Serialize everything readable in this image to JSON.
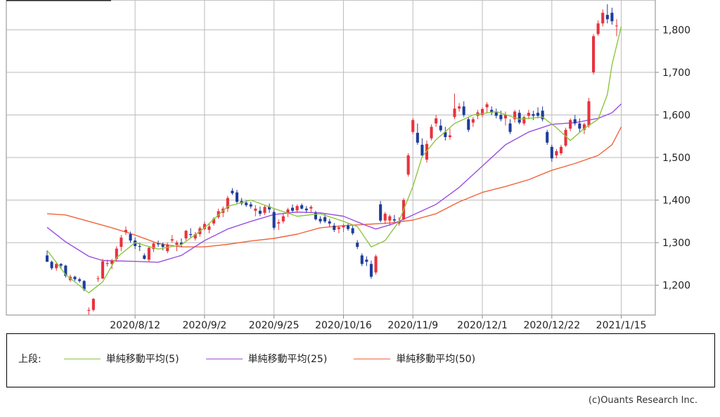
{
  "chart_data": {
    "type": "candlestick",
    "ylim": [
      1130,
      1870
    ],
    "y_ticks": [
      1200,
      1300,
      1400,
      1500,
      1600,
      1700,
      1800
    ],
    "y_tick_labels": [
      "1,200",
      "1,300",
      "1,400",
      "1,500",
      "1,600",
      "1,700",
      "1,800"
    ],
    "x_tick_labels": [
      "2020/8/12",
      "2020/9/2",
      "2020/9/25",
      "2020/10/16",
      "2020/11/9",
      "2020/12/1",
      "2020/12/22",
      "2021/1/15"
    ],
    "x_tick_index": [
      19,
      34,
      49,
      64,
      79,
      94,
      109,
      124
    ],
    "grid": true,
    "colors": {
      "up": "#e8323c",
      "down": "#1e3c9a",
      "ma5": "#8cc63f",
      "ma25": "#9b4fe0",
      "ma50": "#f0643c",
      "grid": "#bbbbbb",
      "axis": "#888888"
    },
    "candles": [
      [
        1270,
        1282,
        1258,
        1255
      ],
      [
        1255,
        1258,
        1236,
        1240
      ],
      [
        1240,
        1255,
        1234,
        1250
      ],
      [
        1250,
        1252,
        1240,
        1246
      ],
      [
        1246,
        1248,
        1218,
        1222
      ],
      [
        1212,
        1225,
        1208,
        1220
      ],
      [
        1220,
        1222,
        1210,
        1214
      ],
      [
        1214,
        1218,
        1206,
        1210
      ],
      [
        1210,
        1212,
        1186,
        1190
      ],
      [
        1140,
        1148,
        1130,
        1142
      ],
      [
        1142,
        1170,
        1138,
        1168
      ],
      [
        1215,
        1222,
        1208,
        1216
      ],
      [
        1216,
        1262,
        1214,
        1256
      ],
      [
        1250,
        1260,
        1244,
        1252
      ],
      [
        1250,
        1262,
        1238,
        1258
      ],
      [
        1262,
        1292,
        1255,
        1286
      ],
      [
        1290,
        1318,
        1280,
        1312
      ],
      [
        1325,
        1338,
        1318,
        1330
      ],
      [
        1320,
        1326,
        1300,
        1305
      ],
      [
        1305,
        1312,
        1285,
        1292
      ],
      [
        1292,
        1300,
        1280,
        1290
      ],
      [
        1270,
        1275,
        1260,
        1262
      ],
      [
        1260,
        1290,
        1255,
        1288
      ],
      [
        1285,
        1300,
        1278,
        1298
      ],
      [
        1298,
        1305,
        1290,
        1296
      ],
      [
        1296,
        1300,
        1282,
        1290
      ],
      [
        1280,
        1300,
        1275,
        1295
      ],
      [
        1305,
        1318,
        1300,
        1308
      ],
      [
        1295,
        1305,
        1280,
        1300
      ],
      [
        1300,
        1310,
        1290,
        1296
      ],
      [
        1310,
        1330,
        1305,
        1328
      ],
      [
        1320,
        1334,
        1312,
        1318
      ],
      [
        1310,
        1325,
        1305,
        1320
      ],
      [
        1320,
        1338,
        1314,
        1334
      ],
      [
        1332,
        1350,
        1328,
        1344
      ],
      [
        1330,
        1345,
        1322,
        1338
      ],
      [
        1345,
        1360,
        1340,
        1356
      ],
      [
        1360,
        1380,
        1356,
        1374
      ],
      [
        1370,
        1385,
        1360,
        1380
      ],
      [
        1380,
        1410,
        1372,
        1405
      ],
      [
        1422,
        1428,
        1412,
        1416
      ],
      [
        1418,
        1424,
        1392,
        1396
      ],
      [
        1398,
        1405,
        1388,
        1392
      ],
      [
        1394,
        1400,
        1384,
        1388
      ],
      [
        1390,
        1396,
        1380,
        1385
      ],
      [
        1375,
        1388,
        1362,
        1380
      ],
      [
        1375,
        1385,
        1362,
        1368
      ],
      [
        1370,
        1388,
        1365,
        1384
      ],
      [
        1385,
        1392,
        1370,
        1378
      ],
      [
        1372,
        1378,
        1330,
        1335
      ],
      [
        1345,
        1355,
        1330,
        1348
      ],
      [
        1350,
        1368,
        1345,
        1362
      ],
      [
        1370,
        1382,
        1360,
        1378
      ],
      [
        1382,
        1390,
        1372,
        1375
      ],
      [
        1376,
        1390,
        1370,
        1386
      ],
      [
        1388,
        1392,
        1378,
        1380
      ],
      [
        1380,
        1386,
        1370,
        1376
      ],
      [
        1380,
        1388,
        1372,
        1384
      ],
      [
        1370,
        1375,
        1352,
        1355
      ],
      [
        1356,
        1362,
        1345,
        1350
      ],
      [
        1360,
        1368,
        1346,
        1350
      ],
      [
        1350,
        1356,
        1338,
        1345
      ],
      [
        1340,
        1346,
        1325,
        1330
      ],
      [
        1332,
        1340,
        1322,
        1336
      ],
      [
        1336,
        1344,
        1325,
        1340
      ],
      [
        1340,
        1345,
        1328,
        1332
      ],
      [
        1334,
        1340,
        1318,
        1322
      ],
      [
        1300,
        1306,
        1285,
        1290
      ],
      [
        1270,
        1275,
        1245,
        1250
      ],
      [
        1260,
        1268,
        1245,
        1255
      ],
      [
        1250,
        1258,
        1215,
        1220
      ],
      [
        1230,
        1272,
        1225,
        1268
      ],
      [
        1390,
        1398,
        1348,
        1352
      ],
      [
        1352,
        1372,
        1344,
        1368
      ],
      [
        1352,
        1366,
        1340,
        1362
      ],
      [
        1355,
        1365,
        1348,
        1352
      ],
      [
        1345,
        1360,
        1340,
        1350
      ],
      [
        1355,
        1405,
        1352,
        1400
      ],
      [
        1460,
        1510,
        1455,
        1505
      ],
      [
        1560,
        1592,
        1555,
        1588
      ],
      [
        1558,
        1580,
        1530,
        1535
      ],
      [
        1530,
        1545,
        1500,
        1505
      ],
      [
        1495,
        1540,
        1488,
        1532
      ],
      [
        1545,
        1578,
        1540,
        1572
      ],
      [
        1580,
        1600,
        1572,
        1592
      ],
      [
        1575,
        1590,
        1560,
        1564
      ],
      [
        1560,
        1572,
        1540,
        1548
      ],
      [
        1548,
        1568,
        1542,
        1552
      ],
      [
        1595,
        1650,
        1590,
        1615
      ],
      [
        1615,
        1628,
        1608,
        1620
      ],
      [
        1620,
        1632,
        1595,
        1600
      ],
      [
        1590,
        1596,
        1560,
        1565
      ],
      [
        1582,
        1595,
        1572,
        1590
      ],
      [
        1598,
        1612,
        1590,
        1606
      ],
      [
        1600,
        1618,
        1594,
        1614
      ],
      [
        1618,
        1630,
        1605,
        1625
      ],
      [
        1612,
        1620,
        1600,
        1605
      ],
      [
        1606,
        1615,
        1592,
        1598
      ],
      [
        1600,
        1610,
        1585,
        1590
      ],
      [
        1592,
        1608,
        1575,
        1600
      ],
      [
        1580,
        1590,
        1555,
        1560
      ],
      [
        1590,
        1612,
        1582,
        1608
      ],
      [
        1605,
        1612,
        1578,
        1582
      ],
      [
        1580,
        1598,
        1575,
        1595
      ],
      [
        1598,
        1612,
        1590,
        1605
      ],
      [
        1602,
        1610,
        1588,
        1598
      ],
      [
        1605,
        1618,
        1592,
        1598
      ],
      [
        1610,
        1620,
        1585,
        1590
      ],
      [
        1560,
        1565,
        1530,
        1535
      ],
      [
        1525,
        1530,
        1490,
        1498
      ],
      [
        1505,
        1520,
        1498,
        1515
      ],
      [
        1510,
        1530,
        1505,
        1525
      ],
      [
        1528,
        1570,
        1525,
        1565
      ],
      [
        1568,
        1592,
        1562,
        1588
      ],
      [
        1590,
        1600,
        1575,
        1580
      ],
      [
        1580,
        1592,
        1560,
        1568
      ],
      [
        1565,
        1582,
        1555,
        1578
      ],
      [
        1575,
        1640,
        1570,
        1632
      ],
      [
        1700,
        1790,
        1695,
        1785
      ],
      [
        1790,
        1822,
        1786,
        1815
      ],
      [
        1815,
        1848,
        1808,
        1840
      ],
      [
        1835,
        1860,
        1815,
        1825
      ],
      [
        1840,
        1852,
        1812,
        1820
      ],
      [
        1810,
        1825,
        1785,
        1810
      ]
    ],
    "ma5": [
      [
        0,
        1282
      ],
      [
        4,
        1225
      ],
      [
        9,
        1182
      ],
      [
        12,
        1208
      ],
      [
        15,
        1265
      ],
      [
        19,
        1300
      ],
      [
        24,
        1285
      ],
      [
        29,
        1295
      ],
      [
        34,
        1335
      ],
      [
        39,
        1385
      ],
      [
        44,
        1400
      ],
      [
        49,
        1380
      ],
      [
        54,
        1362
      ],
      [
        59,
        1368
      ],
      [
        64,
        1350
      ],
      [
        67,
        1338
      ],
      [
        70,
        1290
      ],
      [
        73,
        1305
      ],
      [
        76,
        1350
      ],
      [
        79,
        1432
      ],
      [
        81,
        1502
      ],
      [
        84,
        1542
      ],
      [
        88,
        1580
      ],
      [
        92,
        1600
      ],
      [
        97,
        1608
      ],
      [
        102,
        1590
      ],
      [
        107,
        1595
      ],
      [
        110,
        1570
      ],
      [
        113,
        1540
      ],
      [
        116,
        1568
      ],
      [
        119,
        1590
      ],
      [
        121,
        1648
      ],
      [
        122,
        1718
      ],
      [
        124,
        1808
      ]
    ],
    "ma25": [
      [
        0,
        1336
      ],
      [
        4,
        1302
      ],
      [
        9,
        1268
      ],
      [
        12,
        1258
      ],
      [
        19,
        1256
      ],
      [
        24,
        1254
      ],
      [
        29,
        1270
      ],
      [
        34,
        1305
      ],
      [
        39,
        1332
      ],
      [
        44,
        1350
      ],
      [
        49,
        1366
      ],
      [
        54,
        1372
      ],
      [
        59,
        1370
      ],
      [
        64,
        1362
      ],
      [
        69,
        1340
      ],
      [
        71,
        1332
      ],
      [
        75,
        1345
      ],
      [
        79,
        1365
      ],
      [
        84,
        1390
      ],
      [
        89,
        1430
      ],
      [
        94,
        1480
      ],
      [
        99,
        1530
      ],
      [
        104,
        1560
      ],
      [
        109,
        1578
      ],
      [
        114,
        1582
      ],
      [
        119,
        1592
      ],
      [
        122,
        1605
      ],
      [
        124,
        1626
      ]
    ],
    "ma50": [
      [
        0,
        1368
      ],
      [
        4,
        1365
      ],
      [
        9,
        1350
      ],
      [
        14,
        1335
      ],
      [
        19,
        1318
      ],
      [
        24,
        1298
      ],
      [
        29,
        1290
      ],
      [
        34,
        1290
      ],
      [
        39,
        1296
      ],
      [
        44,
        1304
      ],
      [
        49,
        1310
      ],
      [
        54,
        1320
      ],
      [
        59,
        1335
      ],
      [
        64,
        1340
      ],
      [
        69,
        1343
      ],
      [
        74,
        1346
      ],
      [
        79,
        1353
      ],
      [
        84,
        1368
      ],
      [
        89,
        1396
      ],
      [
        94,
        1418
      ],
      [
        99,
        1432
      ],
      [
        104,
        1448
      ],
      [
        109,
        1470
      ],
      [
        114,
        1486
      ],
      [
        119,
        1505
      ],
      [
        122,
        1530
      ],
      [
        124,
        1572
      ]
    ]
  },
  "legend": {
    "prefix": "上段:",
    "items": [
      {
        "label": "単純移動平均(5)",
        "color": "#8cc63f"
      },
      {
        "label": "単純移動平均(25)",
        "color": "#9b4fe0"
      },
      {
        "label": "単純移動平均(50)",
        "color": "#f0643c"
      }
    ]
  },
  "copyright": "(c)Ouants Research Inc."
}
